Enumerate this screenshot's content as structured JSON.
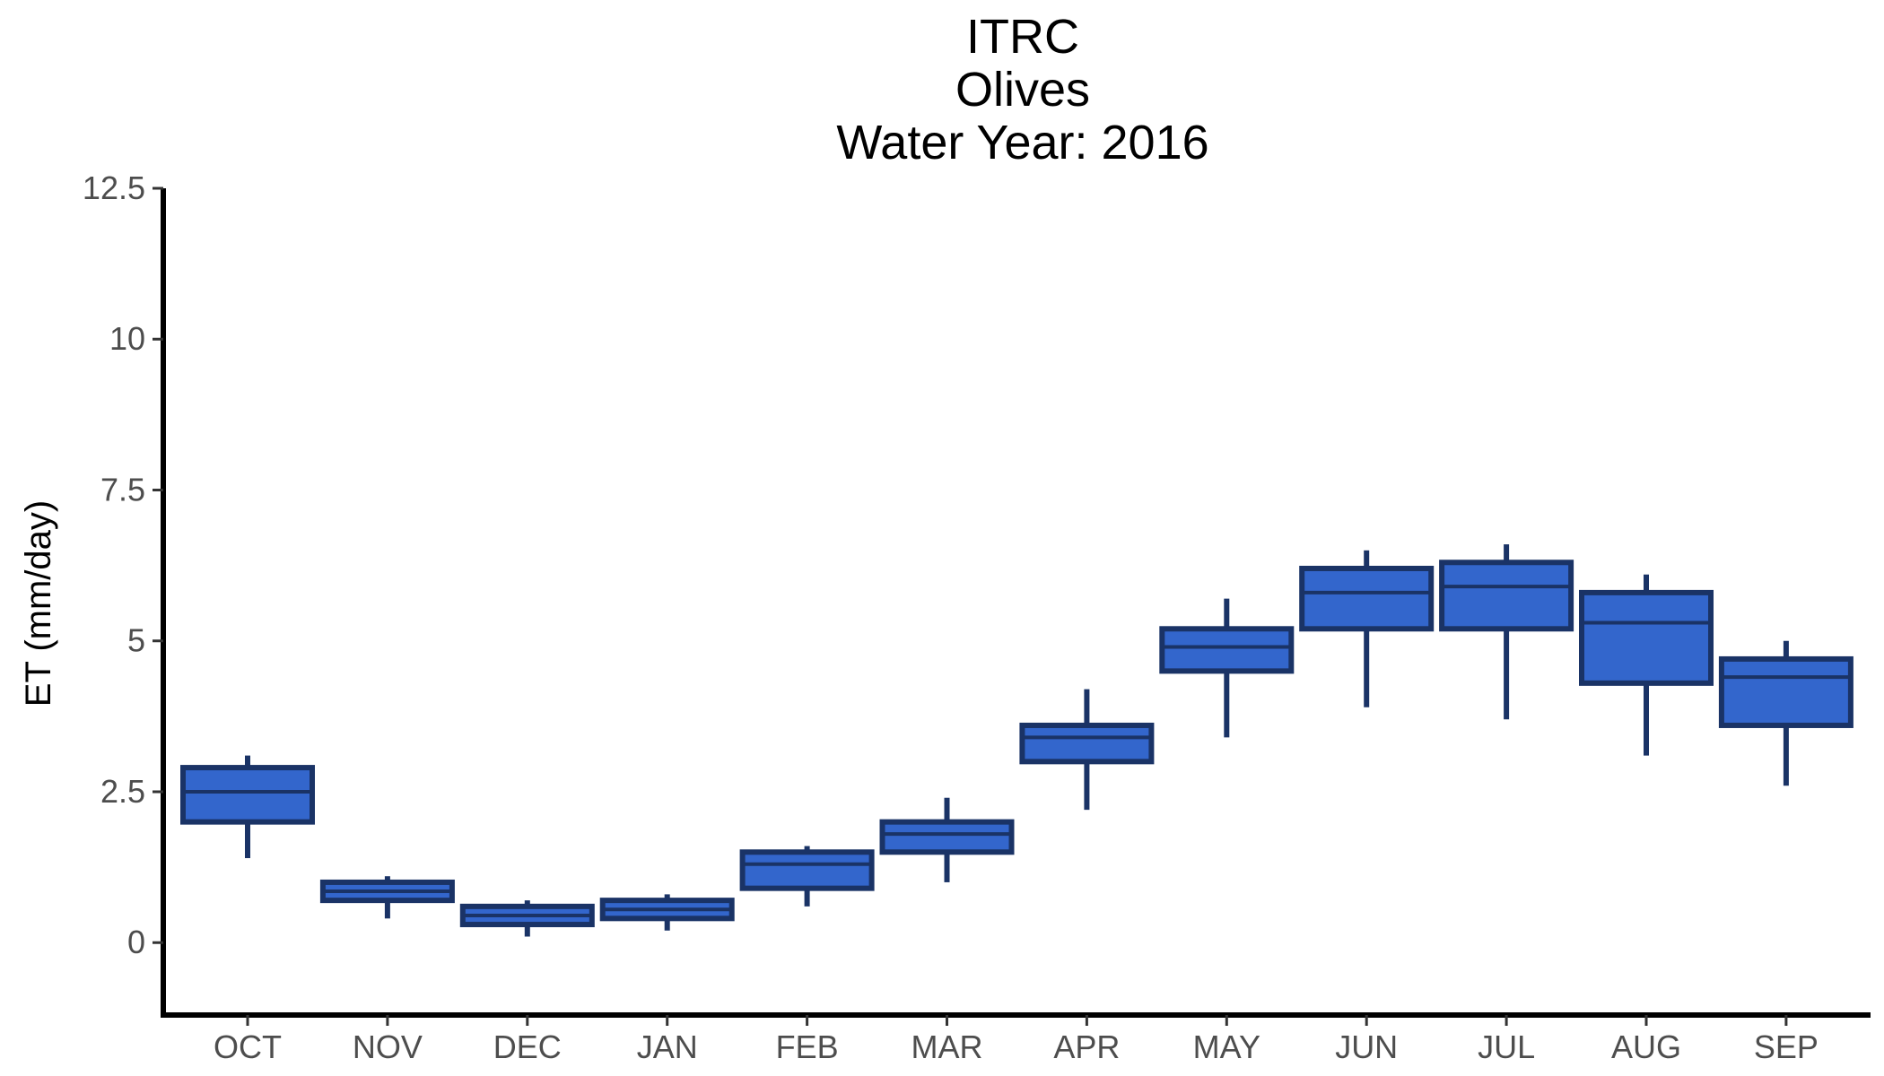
{
  "chart_data": {
    "type": "box",
    "title_lines": [
      "ITRC",
      "Olives",
      "Water Year: 2016"
    ],
    "xlabel": "",
    "ylabel": "ET (mm/day)",
    "ylim": [
      -1.2,
      12.5
    ],
    "yticks": [
      0,
      2.5,
      5,
      7.5,
      10,
      12.5
    ],
    "ytick_labels": [
      "0",
      "2.5",
      "5",
      "7.5",
      "10",
      "12.5"
    ],
    "grid": false,
    "categories": [
      "OCT",
      "NOV",
      "DEC",
      "JAN",
      "FEB",
      "MAR",
      "APR",
      "MAY",
      "JUN",
      "JUL",
      "AUG",
      "SEP"
    ],
    "boxes": [
      {
        "min": 1.4,
        "q1": 2.0,
        "median": 2.5,
        "q3": 2.9,
        "max": 3.1
      },
      {
        "min": 0.4,
        "q1": 0.7,
        "median": 0.85,
        "q3": 1.0,
        "max": 1.1
      },
      {
        "min": 0.1,
        "q1": 0.3,
        "median": 0.45,
        "q3": 0.6,
        "max": 0.7
      },
      {
        "min": 0.2,
        "q1": 0.4,
        "median": 0.55,
        "q3": 0.7,
        "max": 0.8
      },
      {
        "min": 0.6,
        "q1": 0.9,
        "median": 1.3,
        "q3": 1.5,
        "max": 1.6
      },
      {
        "min": 1.0,
        "q1": 1.5,
        "median": 1.8,
        "q3": 2.0,
        "max": 2.4
      },
      {
        "min": 2.2,
        "q1": 3.0,
        "median": 3.4,
        "q3": 3.6,
        "max": 4.2
      },
      {
        "min": 3.4,
        "q1": 4.5,
        "median": 4.9,
        "q3": 5.2,
        "max": 5.7
      },
      {
        "min": 3.9,
        "q1": 5.2,
        "median": 5.8,
        "q3": 6.2,
        "max": 6.5
      },
      {
        "min": 3.7,
        "q1": 5.2,
        "median": 5.9,
        "q3": 6.3,
        "max": 6.6
      },
      {
        "min": 3.1,
        "q1": 4.3,
        "median": 5.3,
        "q3": 5.8,
        "max": 6.1
      },
      {
        "min": 2.6,
        "q1": 3.6,
        "median": 4.4,
        "q3": 4.7,
        "max": 5.0
      }
    ],
    "colors": {
      "fill": "#3366cc",
      "stroke": "#1a3366",
      "axis": "#000000",
      "tick_text": "#4d4d4d"
    }
  }
}
